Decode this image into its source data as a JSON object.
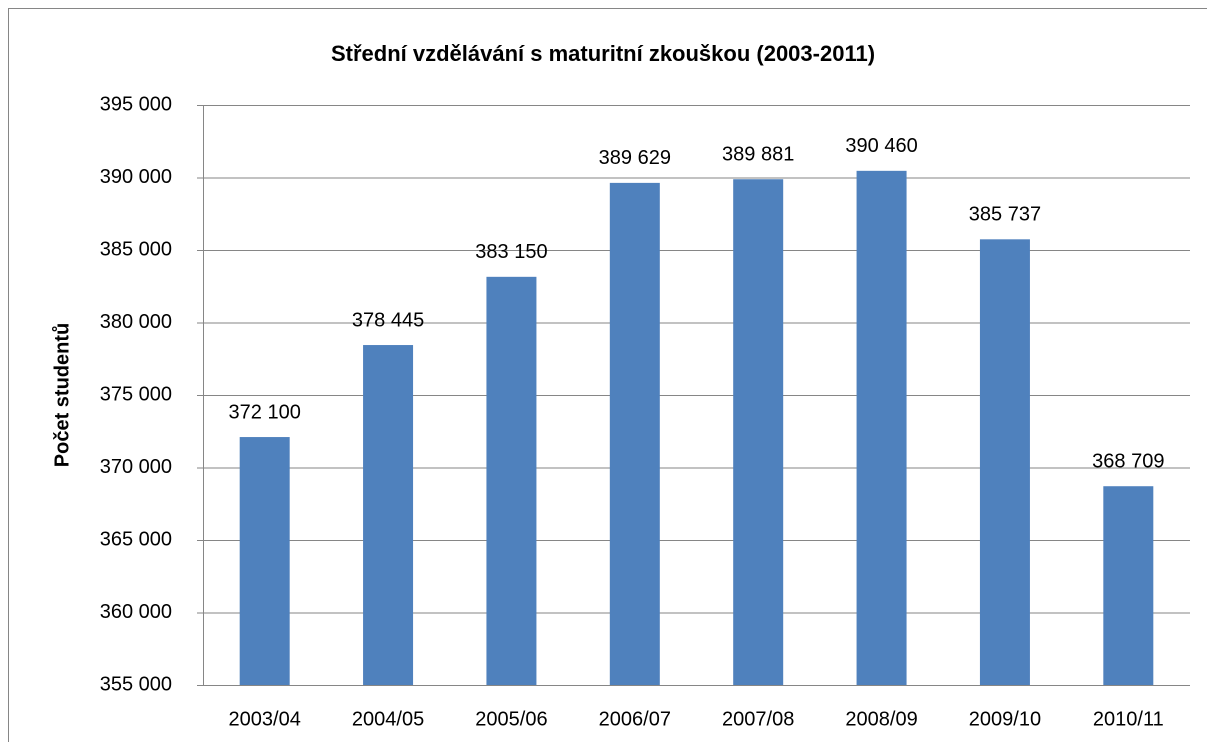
{
  "chart_data": {
    "type": "bar",
    "title": "Střední vzdělávání s maturitní zkouškou (2003-2011)",
    "y_label": "Počet studentů",
    "categories": [
      "2003/04",
      "2004/05",
      "2005/06",
      "2006/07",
      "2007/08",
      "2008/09",
      "2009/10",
      "2010/11"
    ],
    "values": [
      372100,
      378445,
      383150,
      389629,
      389881,
      390460,
      385737,
      368709
    ],
    "value_labels": [
      "372 100",
      "378 445",
      "383 150",
      "389 629",
      "389 881",
      "390 460",
      "385 737",
      "368 709"
    ],
    "color": "#4f81bd",
    "ylim": [
      355000,
      395000
    ],
    "yticks": [
      {
        "value": 355000,
        "label": "355 000"
      },
      {
        "value": 360000,
        "label": "360 000"
      },
      {
        "value": 365000,
        "label": "365 000"
      },
      {
        "value": 370000,
        "label": "370 000"
      },
      {
        "value": 375000,
        "label": "375 000"
      },
      {
        "value": 380000,
        "label": "380 000"
      },
      {
        "value": 385000,
        "label": "385 000"
      },
      {
        "value": 390000,
        "label": "390 000"
      },
      {
        "value": 395000,
        "label": "395 000"
      }
    ],
    "grid": true
  }
}
